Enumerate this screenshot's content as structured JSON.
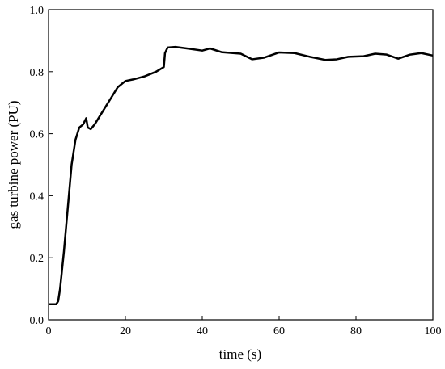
{
  "chart_data": {
    "type": "line",
    "xlabel": "time (s)",
    "ylabel": "gas turbine power (PU)",
    "x": [
      0,
      2,
      2.5,
      3,
      4,
      5,
      6,
      7,
      8,
      9,
      9.8,
      10.2,
      11,
      12,
      14,
      16,
      18,
      20,
      22,
      25,
      28,
      30,
      30.3,
      31,
      33,
      36,
      40,
      42,
      45,
      50,
      53,
      56,
      60,
      64,
      68,
      72,
      75,
      78,
      82,
      85,
      88,
      91,
      94,
      97,
      100
    ],
    "values": [
      0.05,
      0.05,
      0.06,
      0.1,
      0.22,
      0.36,
      0.5,
      0.58,
      0.62,
      0.63,
      0.65,
      0.62,
      0.615,
      0.63,
      0.67,
      0.71,
      0.75,
      0.77,
      0.775,
      0.785,
      0.8,
      0.815,
      0.86,
      0.878,
      0.88,
      0.875,
      0.868,
      0.875,
      0.863,
      0.858,
      0.84,
      0.845,
      0.862,
      0.86,
      0.848,
      0.838,
      0.84,
      0.848,
      0.85,
      0.858,
      0.855,
      0.842,
      0.855,
      0.86,
      0.852
    ],
    "color": "#000000",
    "xlim": [
      0,
      100
    ],
    "xticks": [
      0,
      20,
      40,
      60,
      80,
      100
    ],
    "ylim": [
      0,
      1.0
    ],
    "yticks": [
      {
        "value": 0,
        "label": "0.0"
      },
      0.2,
      0.4,
      0.6,
      0.8,
      {
        "value": 1.0,
        "label": "1.0"
      }
    ]
  }
}
